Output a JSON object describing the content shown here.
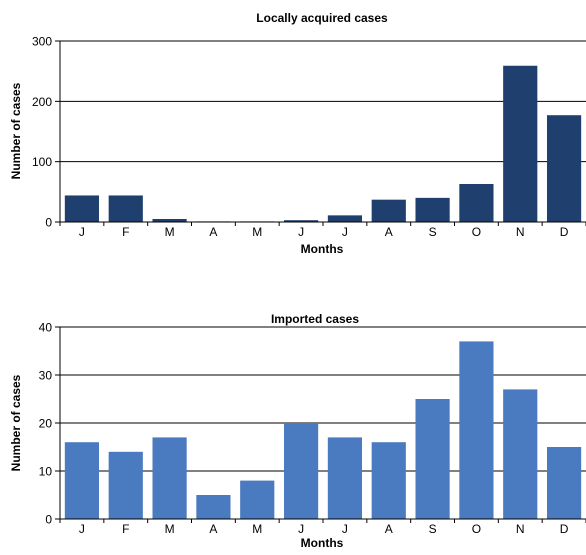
{
  "chart_data": [
    {
      "type": "bar",
      "title": "Locally acquired cases",
      "xlabel": "Months",
      "ylabel": "Number of cases",
      "categories": [
        "J",
        "F",
        "M",
        "A",
        "M",
        "J",
        "J",
        "A",
        "S",
        "O",
        "N",
        "D"
      ],
      "values": [
        44,
        44,
        5,
        1,
        1,
        3,
        11,
        37,
        40,
        63,
        259,
        177
      ],
      "ylim": [
        0,
        300
      ],
      "yticks": [
        0,
        100,
        200,
        300
      ],
      "grid": "horizontal",
      "color": "#1f3f6e"
    },
    {
      "type": "bar",
      "title": "Imported cases",
      "xlabel": "Months",
      "ylabel": "Number of cases",
      "categories": [
        "J",
        "F",
        "M",
        "A",
        "M",
        "J",
        "J",
        "A",
        "S",
        "O",
        "N",
        "D"
      ],
      "values": [
        16,
        14,
        17,
        5,
        8,
        20,
        17,
        16,
        25,
        37,
        27,
        15
      ],
      "ylim": [
        0,
        40
      ],
      "yticks": [
        0,
        10,
        20,
        30,
        40
      ],
      "grid": "horizontal",
      "color": "#4a7bc0"
    }
  ]
}
